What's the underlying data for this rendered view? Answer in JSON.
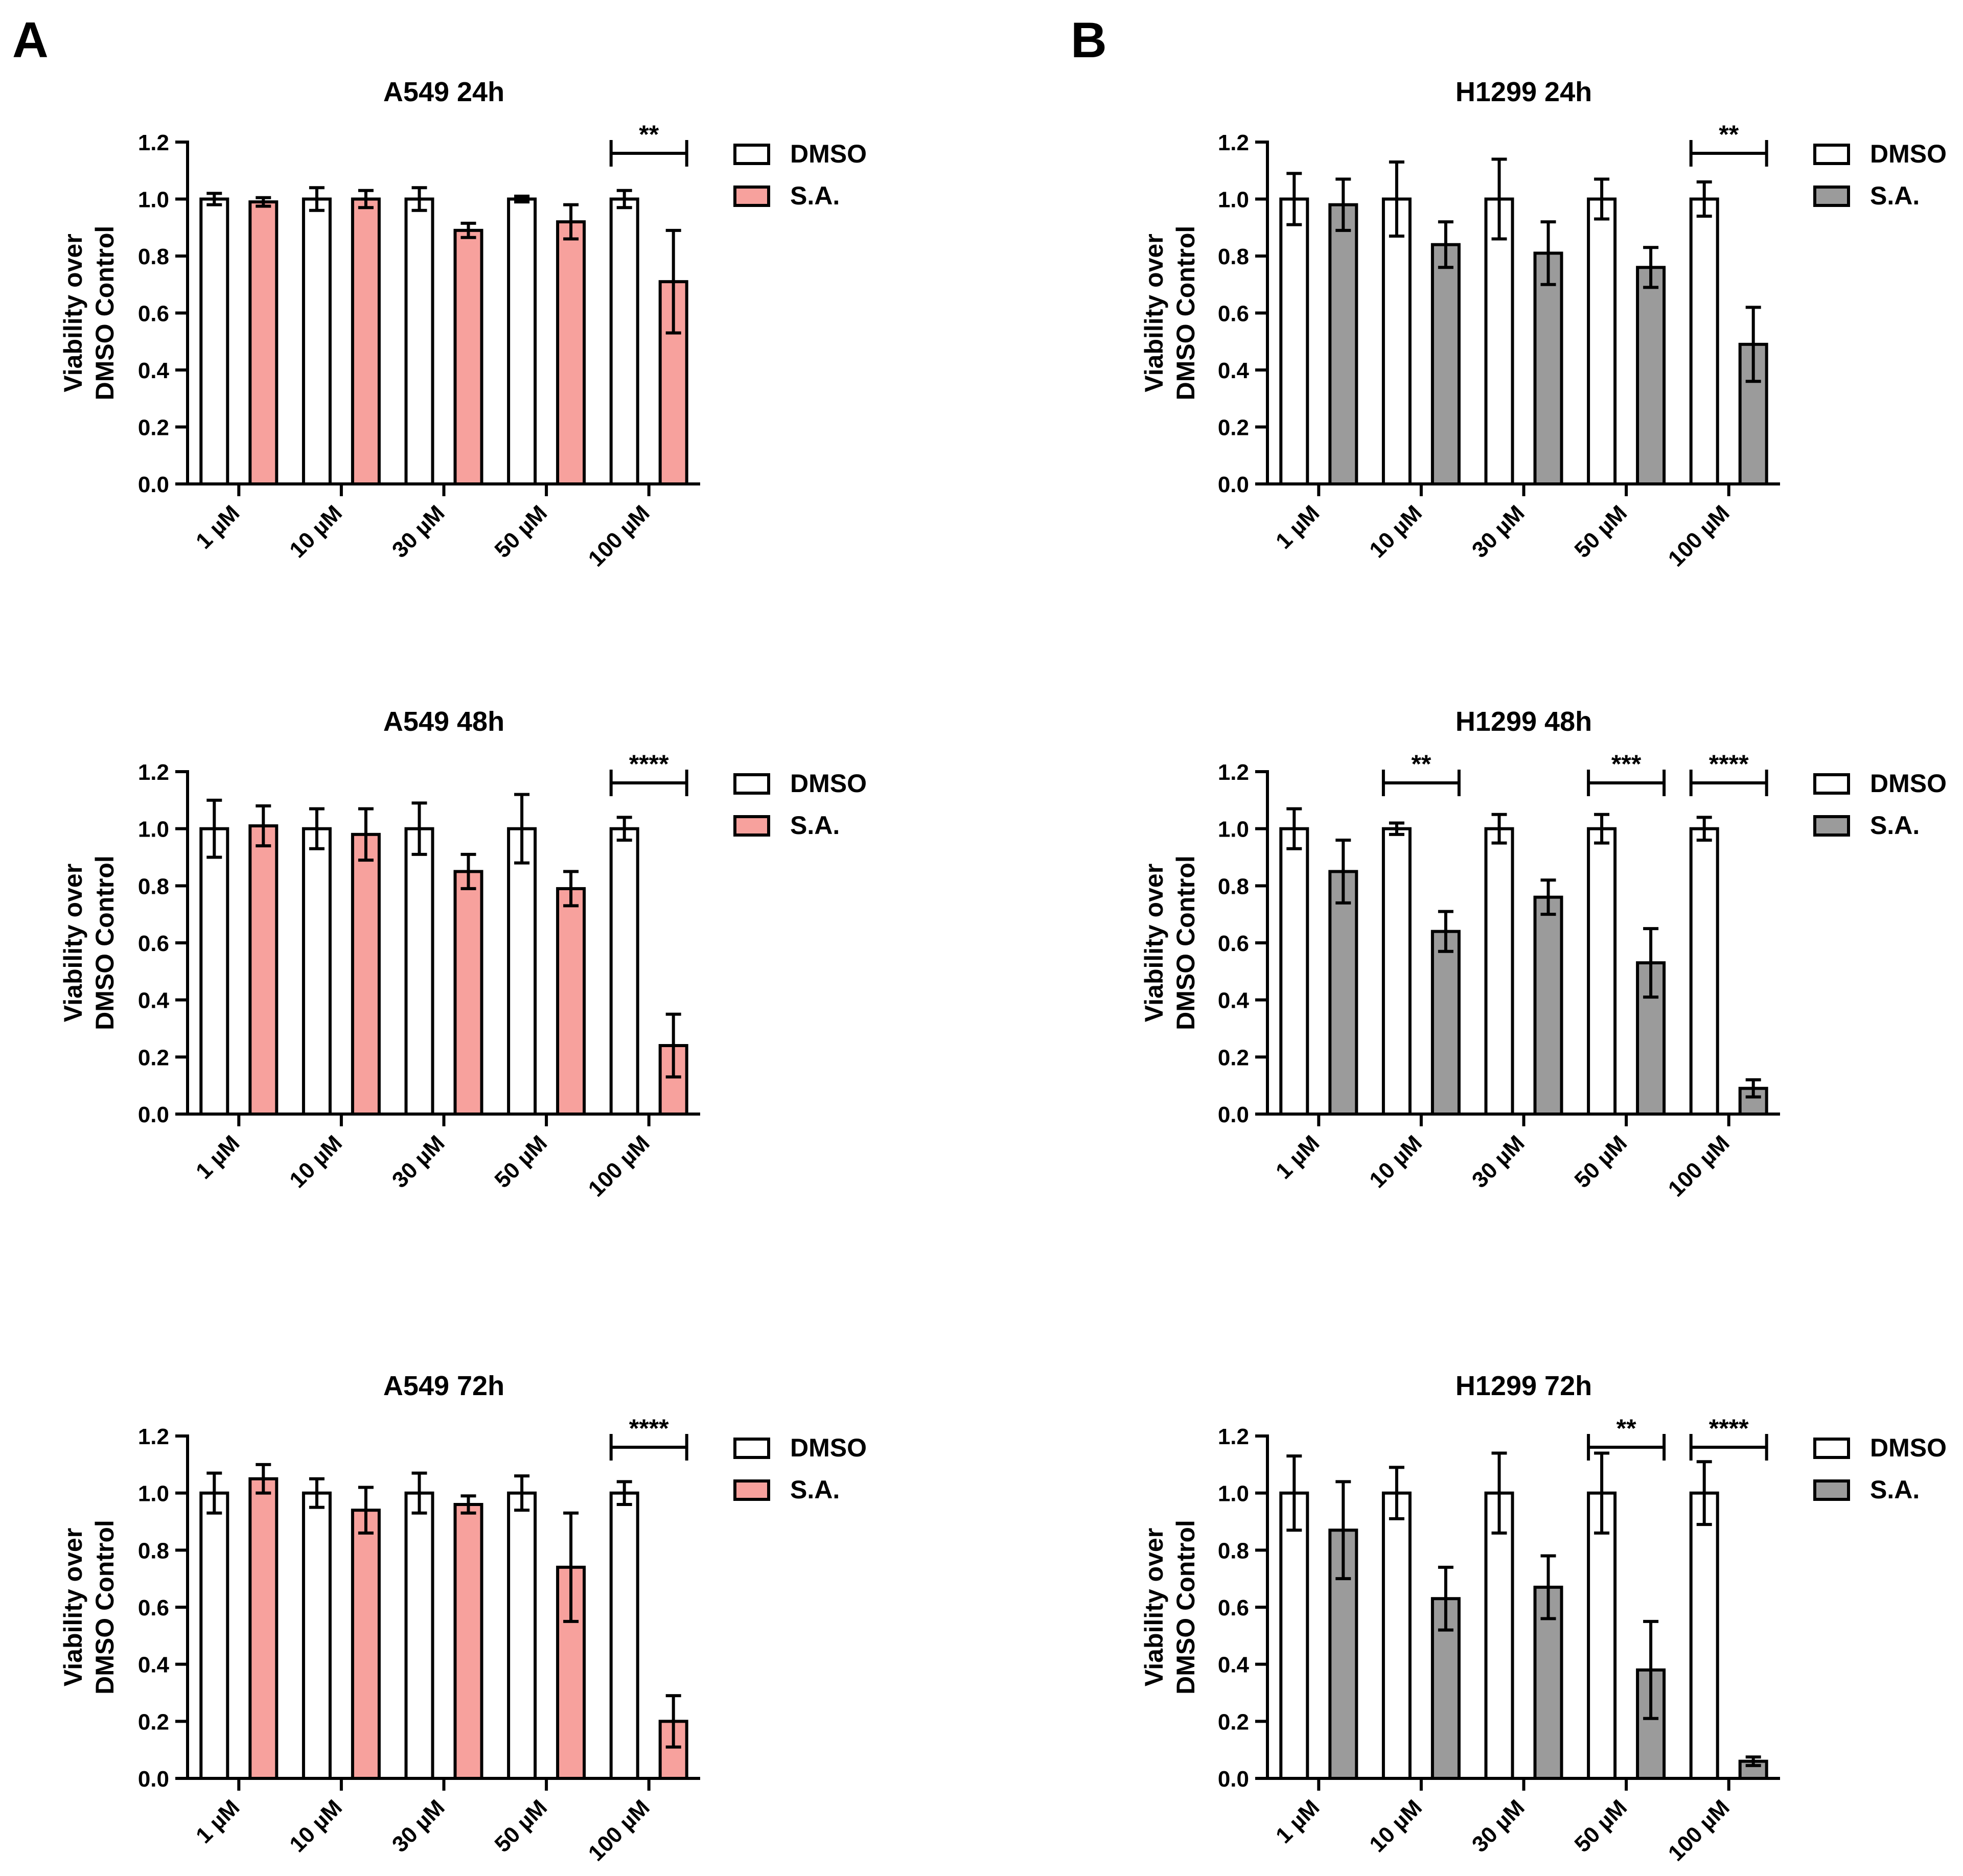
{
  "figure": {
    "panel_labels": [
      "A",
      "B"
    ]
  },
  "chart_data": [
    {
      "panel": "A",
      "type": "bar",
      "title": "A549 24h",
      "ylabel_lines": [
        "Viability over",
        "DMSO Control"
      ],
      "xlabel": "",
      "ylim": [
        0,
        1.2
      ],
      "yticks": [
        "0.0",
        "0.2",
        "0.4",
        "0.6",
        "0.8",
        "1.0",
        "1.2"
      ],
      "categories": [
        "1 µM",
        "10 µM",
        "30 µM",
        "50 µM",
        "100 µM"
      ],
      "series": [
        {
          "name": "DMSO",
          "color": "#ffffff",
          "values": [
            1.0,
            1.0,
            1.0,
            1.0,
            1.0
          ],
          "errors": [
            0.02,
            0.04,
            0.04,
            0.01,
            0.03
          ]
        },
        {
          "name": "S.A.",
          "color": "#f7a19d",
          "values": [
            0.99,
            1.0,
            0.89,
            0.92,
            0.71
          ],
          "errors": [
            0.015,
            0.03,
            0.025,
            0.06,
            0.18
          ]
        }
      ],
      "significance": [
        {
          "category_index": 4,
          "label": "**"
        }
      ],
      "legend": [
        "DMSO",
        "S.A."
      ],
      "legend_position": "right"
    },
    {
      "panel": "A",
      "type": "bar",
      "title": "A549 48h",
      "ylabel_lines": [
        "Viability over",
        "DMSO Control"
      ],
      "xlabel": "",
      "ylim": [
        0,
        1.2
      ],
      "yticks": [
        "0.0",
        "0.2",
        "0.4",
        "0.6",
        "0.8",
        "1.0",
        "1.2"
      ],
      "categories": [
        "1 µM",
        "10 µM",
        "30 µM",
        "50 µM",
        "100 µM"
      ],
      "series": [
        {
          "name": "DMSO",
          "color": "#ffffff",
          "values": [
            1.0,
            1.0,
            1.0,
            1.0,
            1.0
          ],
          "errors": [
            0.1,
            0.07,
            0.09,
            0.12,
            0.04
          ]
        },
        {
          "name": "S.A.",
          "color": "#f7a19d",
          "values": [
            1.01,
            0.98,
            0.85,
            0.79,
            0.24
          ],
          "errors": [
            0.07,
            0.09,
            0.06,
            0.06,
            0.11
          ]
        }
      ],
      "significance": [
        {
          "category_index": 4,
          "label": "****"
        }
      ],
      "legend": [
        "DMSO",
        "S.A."
      ],
      "legend_position": "right"
    },
    {
      "panel": "A",
      "type": "bar",
      "title": "A549 72h",
      "ylabel_lines": [
        "Viability over",
        "DMSO Control"
      ],
      "xlabel": "",
      "ylim": [
        0,
        1.2
      ],
      "yticks": [
        "0.0",
        "0.2",
        "0.4",
        "0.6",
        "0.8",
        "1.0",
        "1.2"
      ],
      "categories": [
        "1 µM",
        "10 µM",
        "30 µM",
        "50 µM",
        "100 µM"
      ],
      "series": [
        {
          "name": "DMSO",
          "color": "#ffffff",
          "values": [
            1.0,
            1.0,
            1.0,
            1.0,
            1.0
          ],
          "errors": [
            0.07,
            0.05,
            0.07,
            0.06,
            0.04
          ]
        },
        {
          "name": "S.A.",
          "color": "#f7a19d",
          "values": [
            1.05,
            0.94,
            0.96,
            0.74,
            0.2
          ],
          "errors": [
            0.05,
            0.08,
            0.03,
            0.19,
            0.09
          ]
        }
      ],
      "significance": [
        {
          "category_index": 4,
          "label": "****"
        }
      ],
      "legend": [
        "DMSO",
        "S.A."
      ],
      "legend_position": "right"
    },
    {
      "panel": "B",
      "type": "bar",
      "title": "H1299 24h",
      "ylabel_lines": [
        "Viability over",
        "DMSO Control"
      ],
      "xlabel": "",
      "ylim": [
        0,
        1.2
      ],
      "yticks": [
        "0.0",
        "0.2",
        "0.4",
        "0.6",
        "0.8",
        "1.0",
        "1.2"
      ],
      "categories": [
        "1 µM",
        "10 µM",
        "30 µM",
        "50 µM",
        "100 µM"
      ],
      "series": [
        {
          "name": "DMSO",
          "color": "#ffffff",
          "values": [
            1.0,
            1.0,
            1.0,
            1.0,
            1.0
          ],
          "errors": [
            0.09,
            0.13,
            0.14,
            0.07,
            0.06
          ]
        },
        {
          "name": "S.A.",
          "color": "#9b9b9b",
          "values": [
            0.98,
            0.84,
            0.81,
            0.76,
            0.49
          ],
          "errors": [
            0.09,
            0.08,
            0.11,
            0.07,
            0.13
          ]
        }
      ],
      "significance": [
        {
          "category_index": 4,
          "label": "**"
        }
      ],
      "legend": [
        "DMSO",
        "S.A."
      ],
      "legend_position": "right"
    },
    {
      "panel": "B",
      "type": "bar",
      "title": "H1299 48h",
      "ylabel_lines": [
        "Viability over",
        "DMSO Control"
      ],
      "xlabel": "",
      "ylim": [
        0,
        1.2
      ],
      "yticks": [
        "0.0",
        "0.2",
        "0.4",
        "0.6",
        "0.8",
        "1.0",
        "1.2"
      ],
      "categories": [
        "1 µM",
        "10 µM",
        "30 µM",
        "50 µM",
        "100 µM"
      ],
      "series": [
        {
          "name": "DMSO",
          "color": "#ffffff",
          "values": [
            1.0,
            1.0,
            1.0,
            1.0,
            1.0
          ],
          "errors": [
            0.07,
            0.02,
            0.05,
            0.05,
            0.04
          ]
        },
        {
          "name": "S.A.",
          "color": "#9b9b9b",
          "values": [
            0.85,
            0.64,
            0.76,
            0.53,
            0.09
          ],
          "errors": [
            0.11,
            0.07,
            0.06,
            0.12,
            0.03
          ]
        }
      ],
      "significance": [
        {
          "category_index": 1,
          "label": "**"
        },
        {
          "category_index": 3,
          "label": "***"
        },
        {
          "category_index": 4,
          "label": "****"
        }
      ],
      "legend": [
        "DMSO",
        "S.A."
      ],
      "legend_position": "right"
    },
    {
      "panel": "B",
      "type": "bar",
      "title": "H1299 72h",
      "ylabel_lines": [
        "Viability over",
        "DMSO Control"
      ],
      "xlabel": "",
      "ylim": [
        0,
        1.2
      ],
      "yticks": [
        "0.0",
        "0.2",
        "0.4",
        "0.6",
        "0.8",
        "1.0",
        "1.2"
      ],
      "categories": [
        "1 µM",
        "10 µM",
        "30 µM",
        "50 µM",
        "100 µM"
      ],
      "series": [
        {
          "name": "DMSO",
          "color": "#ffffff",
          "values": [
            1.0,
            1.0,
            1.0,
            1.0,
            1.0
          ],
          "errors": [
            0.13,
            0.09,
            0.14,
            0.14,
            0.11
          ]
        },
        {
          "name": "S.A.",
          "color": "#9b9b9b",
          "values": [
            0.87,
            0.63,
            0.67,
            0.38,
            0.06
          ],
          "errors": [
            0.17,
            0.11,
            0.11,
            0.17,
            0.015
          ]
        }
      ],
      "significance": [
        {
          "category_index": 3,
          "label": "**"
        },
        {
          "category_index": 4,
          "label": "****"
        }
      ],
      "legend": [
        "DMSO",
        "S.A."
      ],
      "legend_position": "right"
    }
  ]
}
